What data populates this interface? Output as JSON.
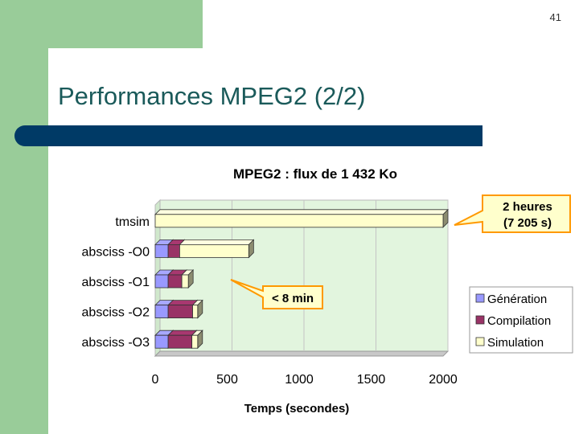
{
  "page_number": "41",
  "slide_title": "Performances MPEG2 (2/2)",
  "chart_data": {
    "type": "bar",
    "orientation": "horizontal",
    "stacked": true,
    "title": "MPEG2 : flux de 1 432 Ko",
    "xlabel": "Temps (secondes)",
    "ylabel": "",
    "xlim": [
      0,
      2000
    ],
    "xticks": [
      0,
      500,
      1000,
      1500,
      2000
    ],
    "xtick_labels": [
      "0",
      "500",
      "1000",
      "1500",
      "2000"
    ],
    "grid": true,
    "legend_position": "right",
    "categories": [
      "tmsim",
      "absciss -O0",
      "absciss -O1",
      "absciss -O2",
      "absciss -O3"
    ],
    "series": [
      {
        "name": "Génération",
        "color": "#9999ff",
        "values": [
          0,
          90,
          90,
          90,
          90
        ]
      },
      {
        "name": "Compilation",
        "color": "#993366",
        "values": [
          0,
          80,
          95,
          170,
          165
        ]
      },
      {
        "name": "Simulation",
        "color": "#ffffcc",
        "values": [
          2000,
          480,
          45,
          35,
          40
        ]
      }
    ],
    "annotations": [
      {
        "id": "tmsim",
        "lines": [
          "2 heures",
          "(7 205 s)"
        ]
      },
      {
        "id": "min",
        "lines": [
          "< 8 min"
        ]
      }
    ]
  }
}
